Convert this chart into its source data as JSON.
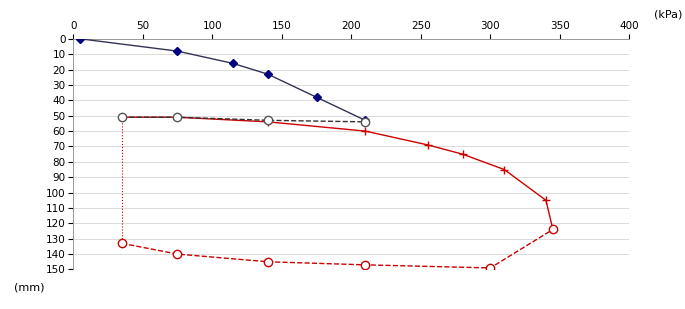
{
  "xlabel_unit": "(kPa)",
  "ylabel_unit": "(mm)",
  "xlim": [
    0,
    400
  ],
  "ylim": [
    150,
    0
  ],
  "xticks": [
    0,
    50,
    100,
    150,
    200,
    250,
    300,
    350,
    400
  ],
  "yticks": [
    0,
    10,
    20,
    30,
    40,
    50,
    60,
    70,
    80,
    90,
    100,
    110,
    120,
    130,
    140,
    150
  ],
  "curve_navy_solid": {
    "x": [
      5,
      75,
      115,
      140,
      175,
      210
    ],
    "y": [
      0,
      8,
      16,
      23,
      38,
      53
    ],
    "color": "#333355",
    "marker": "D",
    "marker_color": "#000080",
    "linewidth": 1.0,
    "markersize": 4,
    "linestyle": "-"
  },
  "curve_red_solid": {
    "x": [
      35,
      75,
      140,
      210,
      255,
      280,
      310,
      340,
      345
    ],
    "y": [
      51,
      51,
      54,
      60,
      69,
      75,
      85,
      105,
      124
    ],
    "color": "#CC0000",
    "marker": "+",
    "marker_color": "#CC0000",
    "linewidth": 1.0,
    "markersize": 6,
    "linestyle": "-"
  },
  "curve_navy_dashed": {
    "x": [
      35,
      75,
      140,
      210
    ],
    "y": [
      51,
      51,
      53,
      54
    ],
    "color": "#333333",
    "marker": "o",
    "marker_color": "white",
    "marker_edgecolor": "#555555",
    "linewidth": 1.0,
    "markersize": 6,
    "linestyle": "--"
  },
  "curve_red_dashed": {
    "x": [
      35,
      75,
      140,
      210,
      300,
      345
    ],
    "y": [
      133,
      140,
      145,
      147,
      149,
      124
    ],
    "color": "#CC0000",
    "marker": "o",
    "marker_color": "white",
    "marker_edgecolor": "#CC0000",
    "linewidth": 1.0,
    "markersize": 6,
    "linestyle": "--"
  },
  "vertical_dotted_left": {
    "x": [
      35,
      35
    ],
    "y": [
      51,
      133
    ],
    "color": "#CC0000",
    "linewidth": 0.8,
    "linestyle": ":"
  },
  "vertical_dotted_right": {
    "x": [
      345,
      345
    ],
    "y": [
      124,
      124
    ],
    "color": "#CC0000",
    "linewidth": 0.8,
    "linestyle": ":"
  },
  "plot_bg": "#f5f5f5",
  "grid_color": "#cccccc",
  "spine_color": "#999999",
  "tick_fontsize": 7.5,
  "label_fontsize": 8
}
